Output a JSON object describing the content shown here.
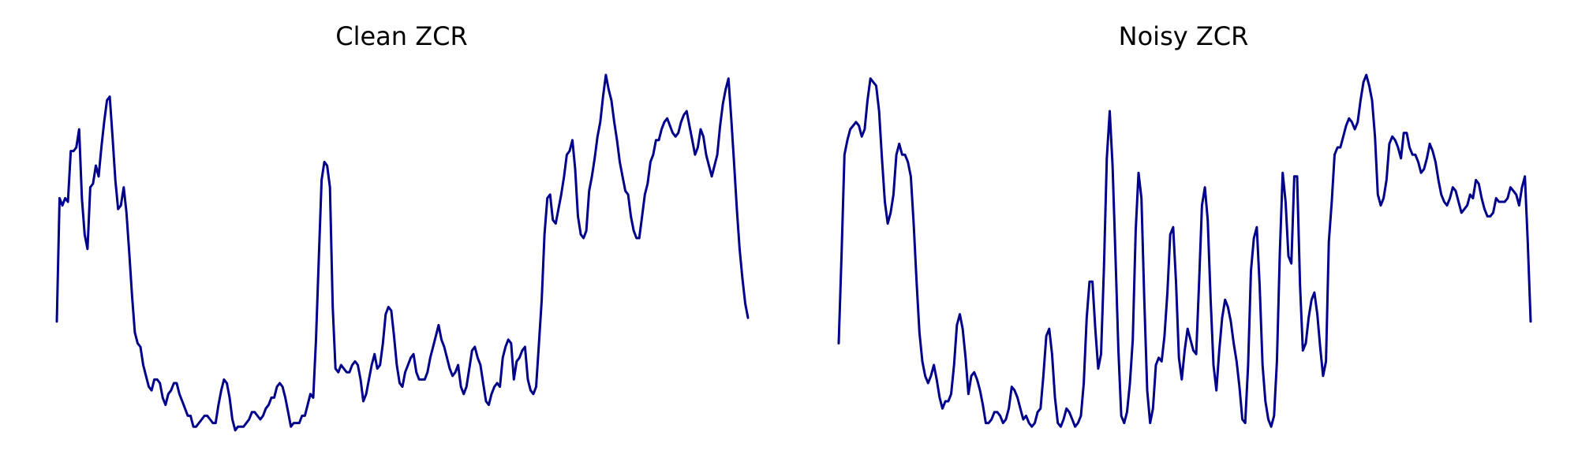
{
  "colors": {
    "line": "#00008B",
    "background": "#ffffff"
  },
  "chart_data": [
    {
      "type": "line",
      "title": "Clean ZCR",
      "xlabel": "",
      "ylabel": "",
      "axes_visible": false,
      "grid": false,
      "ylim": [
        0,
        1
      ],
      "values": [
        0.32,
        0.66,
        0.64,
        0.66,
        0.65,
        0.79,
        0.79,
        0.8,
        0.85,
        0.66,
        0.56,
        0.52,
        0.69,
        0.7,
        0.75,
        0.72,
        0.8,
        0.87,
        0.93,
        0.94,
        0.83,
        0.71,
        0.63,
        0.64,
        0.69,
        0.62,
        0.51,
        0.39,
        0.29,
        0.26,
        0.25,
        0.2,
        0.17,
        0.14,
        0.13,
        0.16,
        0.16,
        0.15,
        0.11,
        0.09,
        0.12,
        0.13,
        0.15,
        0.15,
        0.12,
        0.1,
        0.08,
        0.06,
        0.06,
        0.03,
        0.03,
        0.04,
        0.05,
        0.06,
        0.06,
        0.05,
        0.04,
        0.04,
        0.09,
        0.13,
        0.16,
        0.15,
        0.11,
        0.05,
        0.02,
        0.03,
        0.03,
        0.03,
        0.04,
        0.05,
        0.07,
        0.07,
        0.06,
        0.05,
        0.06,
        0.08,
        0.09,
        0.11,
        0.11,
        0.14,
        0.15,
        0.14,
        0.11,
        0.07,
        0.03,
        0.04,
        0.04,
        0.04,
        0.06,
        0.06,
        0.09,
        0.12,
        0.11,
        0.27,
        0.49,
        0.71,
        0.76,
        0.75,
        0.69,
        0.36,
        0.19,
        0.18,
        0.2,
        0.19,
        0.18,
        0.18,
        0.2,
        0.21,
        0.2,
        0.16,
        0.1,
        0.12,
        0.16,
        0.2,
        0.23,
        0.19,
        0.2,
        0.26,
        0.34,
        0.36,
        0.35,
        0.28,
        0.2,
        0.15,
        0.14,
        0.18,
        0.2,
        0.22,
        0.23,
        0.18,
        0.16,
        0.16,
        0.16,
        0.18,
        0.22,
        0.25,
        0.28,
        0.31,
        0.27,
        0.25,
        0.22,
        0.19,
        0.17,
        0.18,
        0.2,
        0.14,
        0.12,
        0.14,
        0.19,
        0.24,
        0.25,
        0.22,
        0.2,
        0.15,
        0.1,
        0.09,
        0.12,
        0.14,
        0.15,
        0.14,
        0.22,
        0.25,
        0.27,
        0.26,
        0.16,
        0.21,
        0.22,
        0.24,
        0.25,
        0.16,
        0.13,
        0.12,
        0.14,
        0.26,
        0.38,
        0.56,
        0.66,
        0.67,
        0.6,
        0.59,
        0.63,
        0.67,
        0.72,
        0.78,
        0.79,
        0.82,
        0.74,
        0.61,
        0.56,
        0.55,
        0.57,
        0.68,
        0.72,
        0.77,
        0.83,
        0.87,
        0.94,
        1.0,
        0.96,
        0.93,
        0.87,
        0.82,
        0.76,
        0.72,
        0.68,
        0.67,
        0.61,
        0.57,
        0.55,
        0.55,
        0.61,
        0.67,
        0.7,
        0.76,
        0.78,
        0.82,
        0.82,
        0.85,
        0.87,
        0.88,
        0.86,
        0.84,
        0.83,
        0.84,
        0.87,
        0.89,
        0.9,
        0.86,
        0.82,
        0.78,
        0.8,
        0.85,
        0.83,
        0.78,
        0.75,
        0.72,
        0.75,
        0.78,
        0.86,
        0.92,
        0.96,
        0.99,
        0.88,
        0.76,
        0.63,
        0.52,
        0.44,
        0.37,
        0.33
      ]
    },
    {
      "type": "line",
      "title": "Noisy ZCR",
      "xlabel": "",
      "ylabel": "",
      "axes_visible": false,
      "grid": false,
      "ylim": [
        0,
        1
      ],
      "values": [
        0.26,
        0.51,
        0.78,
        0.82,
        0.85,
        0.86,
        0.87,
        0.86,
        0.83,
        0.85,
        0.93,
        0.99,
        0.98,
        0.97,
        0.9,
        0.77,
        0.65,
        0.59,
        0.62,
        0.67,
        0.78,
        0.81,
        0.78,
        0.78,
        0.76,
        0.72,
        0.59,
        0.43,
        0.29,
        0.21,
        0.17,
        0.15,
        0.17,
        0.2,
        0.16,
        0.11,
        0.08,
        0.1,
        0.1,
        0.12,
        0.2,
        0.31,
        0.34,
        0.3,
        0.22,
        0.12,
        0.17,
        0.18,
        0.16,
        0.13,
        0.09,
        0.04,
        0.04,
        0.05,
        0.07,
        0.07,
        0.06,
        0.04,
        0.05,
        0.08,
        0.14,
        0.13,
        0.11,
        0.08,
        0.05,
        0.06,
        0.04,
        0.03,
        0.04,
        0.07,
        0.08,
        0.17,
        0.28,
        0.3,
        0.23,
        0.11,
        0.04,
        0.03,
        0.05,
        0.08,
        0.07,
        0.05,
        0.03,
        0.04,
        0.06,
        0.15,
        0.33,
        0.43,
        0.43,
        0.3,
        0.19,
        0.23,
        0.47,
        0.77,
        0.9,
        0.75,
        0.5,
        0.24,
        0.06,
        0.04,
        0.07,
        0.15,
        0.27,
        0.57,
        0.73,
        0.66,
        0.38,
        0.13,
        0.04,
        0.08,
        0.2,
        0.22,
        0.21,
        0.28,
        0.4,
        0.56,
        0.58,
        0.43,
        0.22,
        0.16,
        0.24,
        0.3,
        0.27,
        0.24,
        0.23,
        0.43,
        0.64,
        0.69,
        0.6,
        0.38,
        0.2,
        0.13,
        0.24,
        0.33,
        0.38,
        0.36,
        0.32,
        0.26,
        0.21,
        0.14,
        0.05,
        0.04,
        0.2,
        0.46,
        0.55,
        0.58,
        0.42,
        0.2,
        0.1,
        0.05,
        0.03,
        0.06,
        0.21,
        0.51,
        0.73,
        0.65,
        0.5,
        0.48,
        0.72,
        0.72,
        0.42,
        0.24,
        0.26,
        0.33,
        0.38,
        0.4,
        0.34,
        0.25,
        0.17,
        0.21,
        0.54,
        0.65,
        0.78,
        0.8,
        0.8,
        0.83,
        0.86,
        0.88,
        0.87,
        0.85,
        0.87,
        0.93,
        0.98,
        1.0,
        0.97,
        0.93,
        0.83,
        0.67,
        0.64,
        0.66,
        0.71,
        0.81,
        0.83,
        0.82,
        0.8,
        0.77,
        0.84,
        0.84,
        0.8,
        0.78,
        0.78,
        0.76,
        0.73,
        0.74,
        0.77,
        0.81,
        0.79,
        0.76,
        0.71,
        0.67,
        0.65,
        0.64,
        0.66,
        0.69,
        0.68,
        0.65,
        0.62,
        0.63,
        0.64,
        0.67,
        0.66,
        0.71,
        0.7,
        0.66,
        0.63,
        0.61,
        0.61,
        0.62,
        0.66,
        0.65,
        0.65,
        0.65,
        0.66,
        0.69,
        0.68,
        0.67,
        0.64,
        0.69,
        0.72,
        0.54,
        0.32
      ]
    }
  ]
}
